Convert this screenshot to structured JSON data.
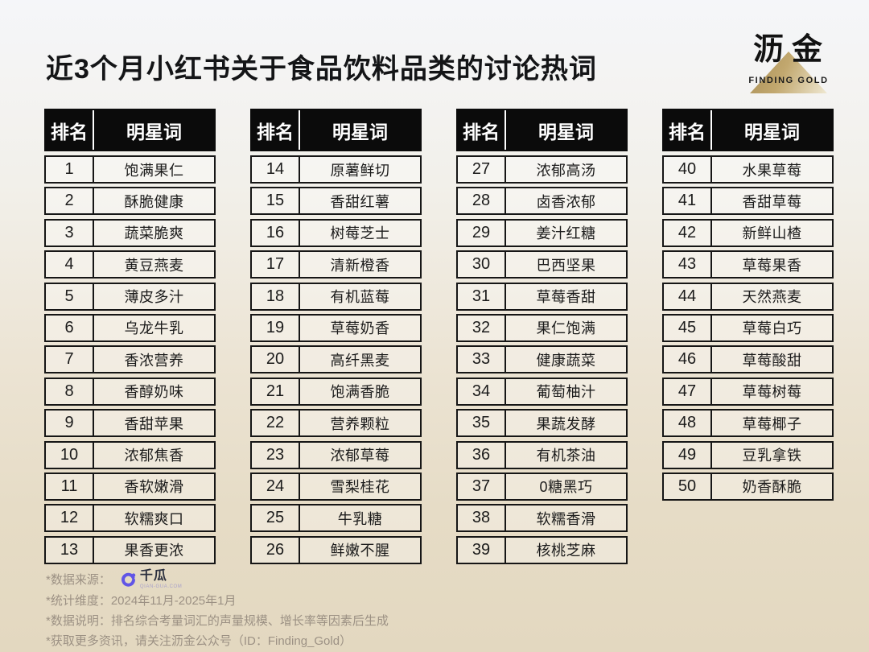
{
  "title": "近3个月小红书关于食品饮料品类的讨论热词",
  "brand": {
    "name_cn": "沥金",
    "name_en": "FINDING GOLD",
    "gold_color": "#b89a5e"
  },
  "table_header": {
    "rank": "排名",
    "word": "明星词"
  },
  "tables": [
    {
      "rows": [
        {
          "rank": "1",
          "word": "饱满果仁"
        },
        {
          "rank": "2",
          "word": "酥脆健康"
        },
        {
          "rank": "3",
          "word": "蔬菜脆爽"
        },
        {
          "rank": "4",
          "word": "黄豆燕麦"
        },
        {
          "rank": "5",
          "word": "薄皮多汁"
        },
        {
          "rank": "6",
          "word": "乌龙牛乳"
        },
        {
          "rank": "7",
          "word": "香浓营养"
        },
        {
          "rank": "8",
          "word": "香醇奶味"
        },
        {
          "rank": "9",
          "word": "香甜苹果"
        },
        {
          "rank": "10",
          "word": "浓郁焦香"
        },
        {
          "rank": "11",
          "word": "香软嫩滑"
        },
        {
          "rank": "12",
          "word": "软糯爽口"
        },
        {
          "rank": "13",
          "word": "果香更浓"
        }
      ]
    },
    {
      "rows": [
        {
          "rank": "14",
          "word": "原薯鲜切"
        },
        {
          "rank": "15",
          "word": "香甜红薯"
        },
        {
          "rank": "16",
          "word": "树莓芝士"
        },
        {
          "rank": "17",
          "word": "清新橙香"
        },
        {
          "rank": "18",
          "word": "有机蓝莓"
        },
        {
          "rank": "19",
          "word": "草莓奶香"
        },
        {
          "rank": "20",
          "word": "高纤黑麦"
        },
        {
          "rank": "21",
          "word": "饱满香脆"
        },
        {
          "rank": "22",
          "word": "营养颗粒"
        },
        {
          "rank": "23",
          "word": "浓郁草莓"
        },
        {
          "rank": "24",
          "word": "雪梨桂花"
        },
        {
          "rank": "25",
          "word": "牛乳糖"
        },
        {
          "rank": "26",
          "word": "鲜嫩不腥"
        }
      ]
    },
    {
      "rows": [
        {
          "rank": "27",
          "word": "浓郁高汤"
        },
        {
          "rank": "28",
          "word": "卤香浓郁"
        },
        {
          "rank": "29",
          "word": "姜汁红糖"
        },
        {
          "rank": "30",
          "word": "巴西坚果"
        },
        {
          "rank": "31",
          "word": "草莓香甜"
        },
        {
          "rank": "32",
          "word": "果仁饱满"
        },
        {
          "rank": "33",
          "word": "健康蔬菜"
        },
        {
          "rank": "34",
          "word": "葡萄柚汁"
        },
        {
          "rank": "35",
          "word": "果蔬发酵"
        },
        {
          "rank": "36",
          "word": "有机茶油"
        },
        {
          "rank": "37",
          "word": "0糖黑巧"
        },
        {
          "rank": "38",
          "word": "软糯香滑"
        },
        {
          "rank": "39",
          "word": "核桃芝麻"
        }
      ]
    },
    {
      "rows": [
        {
          "rank": "40",
          "word": "水果草莓"
        },
        {
          "rank": "41",
          "word": "香甜草莓"
        },
        {
          "rank": "42",
          "word": "新鲜山楂"
        },
        {
          "rank": "43",
          "word": "草莓果香"
        },
        {
          "rank": "44",
          "word": "天然燕麦"
        },
        {
          "rank": "45",
          "word": "草莓白巧"
        },
        {
          "rank": "46",
          "word": "草莓酸甜"
        },
        {
          "rank": "47",
          "word": "草莓树莓"
        },
        {
          "rank": "48",
          "word": "草莓椰子"
        },
        {
          "rank": "49",
          "word": "豆乳拿铁"
        },
        {
          "rank": "50",
          "word": "奶香酥脆"
        }
      ]
    }
  ],
  "footer": {
    "source_label": "*数据来源：",
    "source_logo_name": "千瓜",
    "source_logo_sub": "QIAN-GUA.COM",
    "source_logo_color": "#6155e6",
    "line_period": "*统计维度：2024年11月-2025年1月",
    "line_method": "*数据说明：排名综合考量词汇的声量规模、增长率等因素后生成",
    "line_more": "*获取更多资讯，请关注沥金公众号（ID：Finding_Gold）"
  },
  "chart_data": {
    "type": "table",
    "title": "近3个月小红书关于食品饮料品类的讨论热词",
    "columns": [
      "排名",
      "明星词"
    ],
    "rows": [
      [
        1,
        "饱满果仁"
      ],
      [
        2,
        "酥脆健康"
      ],
      [
        3,
        "蔬菜脆爽"
      ],
      [
        4,
        "黄豆燕麦"
      ],
      [
        5,
        "薄皮多汁"
      ],
      [
        6,
        "乌龙牛乳"
      ],
      [
        7,
        "香浓营养"
      ],
      [
        8,
        "香醇奶味"
      ],
      [
        9,
        "香甜苹果"
      ],
      [
        10,
        "浓郁焦香"
      ],
      [
        11,
        "香软嫩滑"
      ],
      [
        12,
        "软糯爽口"
      ],
      [
        13,
        "果香更浓"
      ],
      [
        14,
        "原薯鲜切"
      ],
      [
        15,
        "香甜红薯"
      ],
      [
        16,
        "树莓芝士"
      ],
      [
        17,
        "清新橙香"
      ],
      [
        18,
        "有机蓝莓"
      ],
      [
        19,
        "草莓奶香"
      ],
      [
        20,
        "高纤黑麦"
      ],
      [
        21,
        "饱满香脆"
      ],
      [
        22,
        "营养颗粒"
      ],
      [
        23,
        "浓郁草莓"
      ],
      [
        24,
        "雪梨桂花"
      ],
      [
        25,
        "牛乳糖"
      ],
      [
        26,
        "鲜嫩不腥"
      ],
      [
        27,
        "浓郁高汤"
      ],
      [
        28,
        "卤香浓郁"
      ],
      [
        29,
        "姜汁红糖"
      ],
      [
        30,
        "巴西坚果"
      ],
      [
        31,
        "草莓香甜"
      ],
      [
        32,
        "果仁饱满"
      ],
      [
        33,
        "健康蔬菜"
      ],
      [
        34,
        "葡萄柚汁"
      ],
      [
        35,
        "果蔬发酵"
      ],
      [
        36,
        "有机茶油"
      ],
      [
        37,
        "0糖黑巧"
      ],
      [
        38,
        "软糯香滑"
      ],
      [
        39,
        "核桃芝麻"
      ],
      [
        40,
        "水果草莓"
      ],
      [
        41,
        "香甜草莓"
      ],
      [
        42,
        "新鲜山楂"
      ],
      [
        43,
        "草莓果香"
      ],
      [
        44,
        "天然燕麦"
      ],
      [
        45,
        "草莓白巧"
      ],
      [
        46,
        "草莓酸甜"
      ],
      [
        47,
        "草莓树莓"
      ],
      [
        48,
        "草莓椰子"
      ],
      [
        49,
        "豆乳拿铁"
      ],
      [
        50,
        "奶香酥脆"
      ]
    ]
  }
}
